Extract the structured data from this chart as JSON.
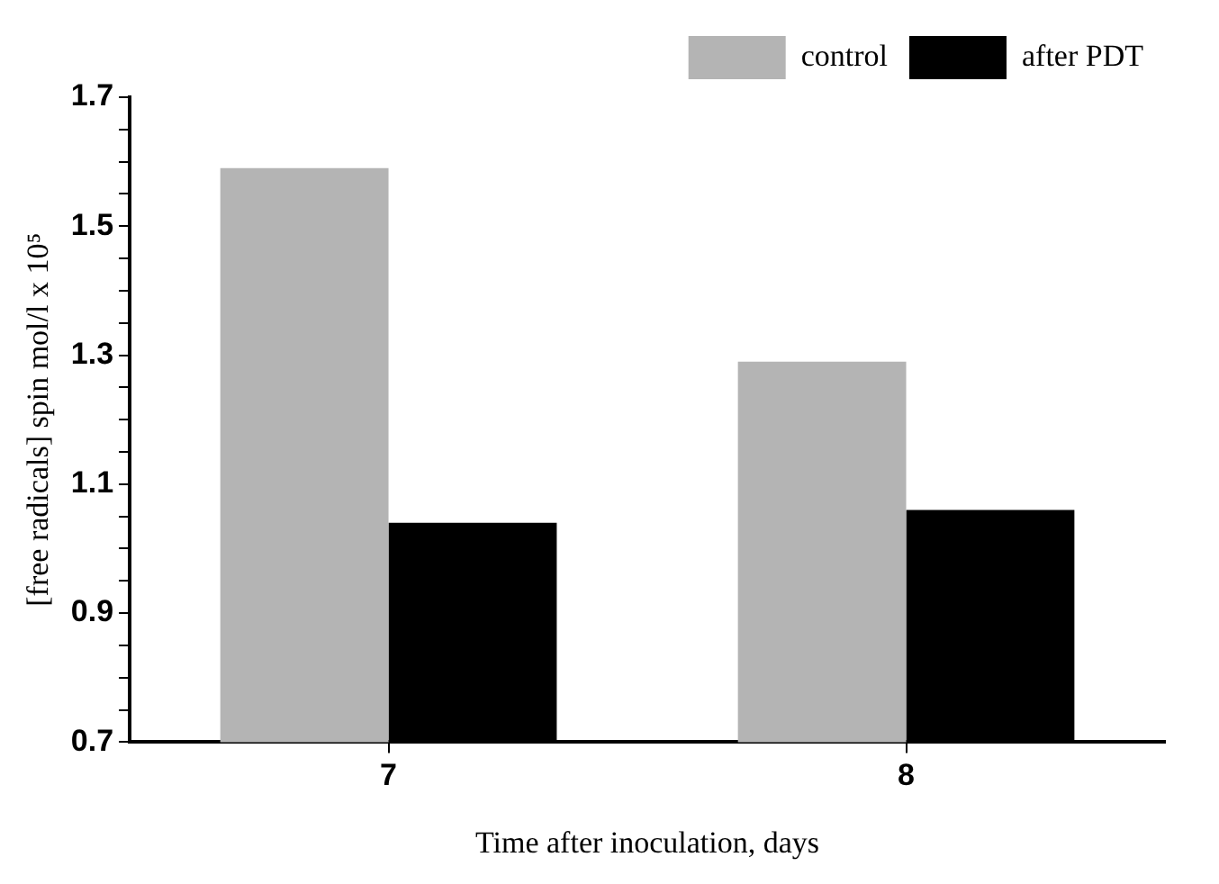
{
  "chart_data": {
    "type": "bar",
    "xlabel": "Time after inoculation, days",
    "ylabel": "[free radicals] spin mol/l x 10⁵",
    "categories": [
      "7",
      "8"
    ],
    "series": [
      {
        "name": "control",
        "color": "#b4b4b4",
        "values": [
          1.59,
          1.29
        ]
      },
      {
        "name": "after PDT",
        "color": "#000000",
        "values": [
          1.04,
          1.06
        ]
      }
    ],
    "ylim": [
      0.7,
      1.7
    ],
    "yticks": [
      0.7,
      {
        "value": 0.75,
        "label": null
      },
      {
        "value": 0.8,
        "label": null
      },
      {
        "value": 0.85,
        "label": null
      },
      0.9,
      {
        "value": 0.95,
        "label": null
      },
      {
        "value": 1.0,
        "label": null
      },
      {
        "value": 1.05,
        "label": null
      },
      1.1,
      {
        "value": 1.15,
        "label": null
      },
      {
        "value": 1.2,
        "label": null
      },
      {
        "value": 1.25,
        "label": null
      },
      1.3,
      {
        "value": 1.35,
        "label": null
      },
      {
        "value": 1.4,
        "label": null
      },
      {
        "value": 1.45,
        "label": null
      },
      1.5,
      {
        "value": 1.55,
        "label": null
      },
      {
        "value": 1.6,
        "label": null
      },
      {
        "value": 1.65,
        "label": null
      },
      1.7
    ],
    "grid": false,
    "legend": "top right"
  }
}
